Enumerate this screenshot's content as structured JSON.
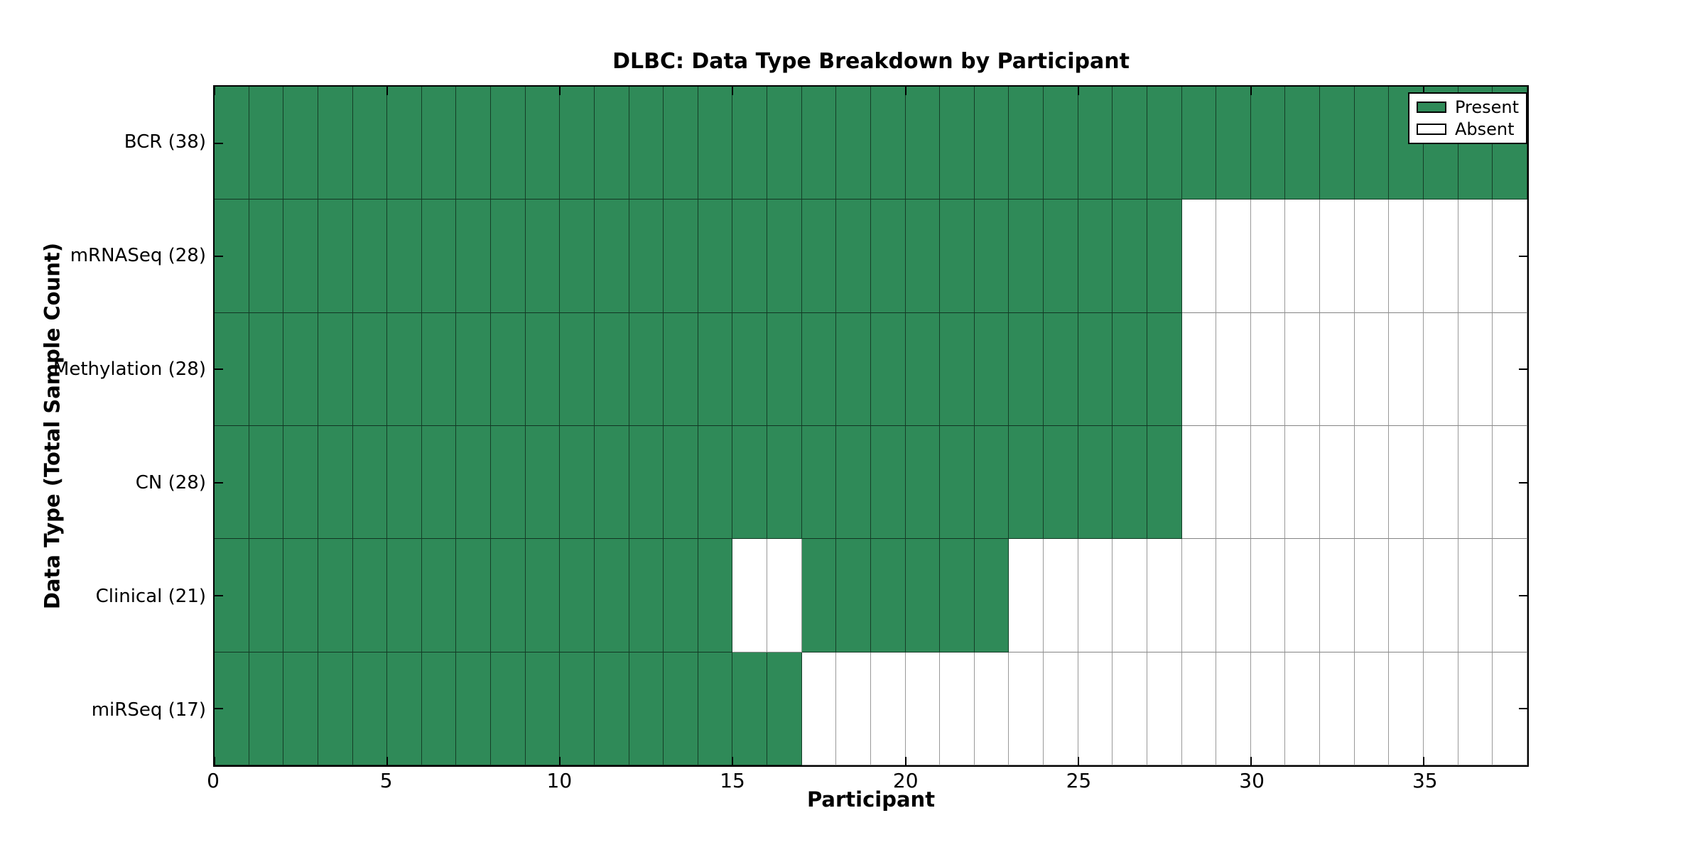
{
  "chart_data": {
    "type": "heatmap",
    "title": "DLBC: Data Type Breakdown by Participant",
    "xlabel": "Participant",
    "ylabel": "Data Type (Total Sample Count)",
    "x_range": [
      0,
      38
    ],
    "x_ticks": [
      0,
      5,
      10,
      15,
      20,
      25,
      30,
      35
    ],
    "n_participants": 38,
    "legend": [
      "Present",
      "Absent"
    ],
    "legend_position": "upper right",
    "grid": true,
    "colors": {
      "present": "#2f8a58",
      "absent": "#ffffff"
    },
    "rows": [
      {
        "label": "BCR (38)",
        "data_type": "BCR",
        "total": 38,
        "present_ranges": [
          [
            0,
            38
          ]
        ]
      },
      {
        "label": "mRNASeq (28)",
        "data_type": "mRNASeq",
        "total": 28,
        "present_ranges": [
          [
            0,
            28
          ]
        ]
      },
      {
        "label": "Methylation (28)",
        "data_type": "Methylation",
        "total": 28,
        "present_ranges": [
          [
            0,
            28
          ]
        ]
      },
      {
        "label": "CN (28)",
        "data_type": "CN",
        "total": 28,
        "present_ranges": [
          [
            0,
            28
          ]
        ]
      },
      {
        "label": "Clinical (21)",
        "data_type": "Clinical",
        "total": 21,
        "present_ranges": [
          [
            0,
            15
          ],
          [
            17,
            23
          ]
        ]
      },
      {
        "label": "miRSeq (17)",
        "data_type": "miRSeq",
        "total": 17,
        "present_ranges": [
          [
            0,
            17
          ]
        ]
      }
    ]
  }
}
